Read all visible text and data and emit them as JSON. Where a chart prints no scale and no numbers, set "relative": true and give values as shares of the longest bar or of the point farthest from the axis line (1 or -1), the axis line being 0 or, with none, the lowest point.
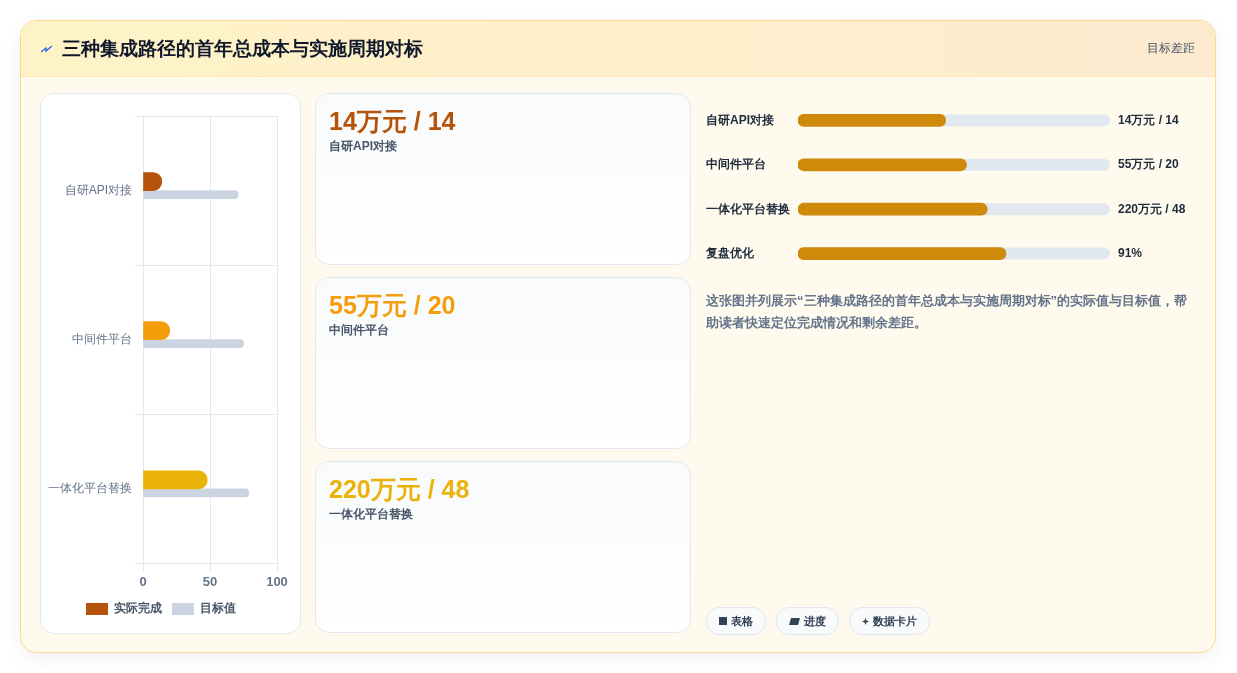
{
  "chart_data": [
    {
      "type": "other",
      "title": "三种集成路径的首年总成本与实施周期对标",
      "annotations": [
        "目标差距"
      ]
    },
    {
      "type": "bar",
      "orientation": "horizontal",
      "categories": [
        "自研API对接",
        "中间件平台",
        "一体化平台替换"
      ],
      "series": [
        {
          "name": "实际完成",
          "colors": [
            "#b45309",
            "#f59e0b",
            "#eab308"
          ],
          "values": [
            14,
            20,
            48
          ]
        },
        {
          "name": "目标值",
          "color": "#cbd5e1",
          "values": [
            71,
            75,
            79
          ]
        }
      ],
      "xlim": [
        0,
        100
      ],
      "xticks": [
        0,
        50,
        100
      ],
      "grid": true,
      "legend": "bottom"
    },
    {
      "type": "other",
      "categories": [
        "自研API对接",
        "中间件平台",
        "一体化平台替换"
      ],
      "value_labels": [
        "14万元 / 14",
        "55万元 / 20",
        "220万元 / 48"
      ]
    },
    {
      "type": "bar",
      "orientation": "horizontal",
      "relative": true,
      "categories": [
        "自研API对接",
        "中间件平台",
        "一体化平台替换",
        "复盘优化"
      ],
      "series": [
        {
          "color": "#d08a0b",
          "values": [
            0.71,
            0.81,
            0.91,
            1
          ]
        }
      ],
      "value_labels": [
        "14万元 / 14",
        "55万元 / 20",
        "220万元 / 48",
        "91%"
      ],
      "annotations": [
        "这张图并列展示“三种集成路径的首年总成本与实施周期对标”的实际值与目标值，帮助读者快速定位完成情况和剩余差距。"
      ]
    },
    {
      "type": "other",
      "categories": [
        "表格",
        "进度",
        "数据卡片"
      ]
    }
  ]
}
